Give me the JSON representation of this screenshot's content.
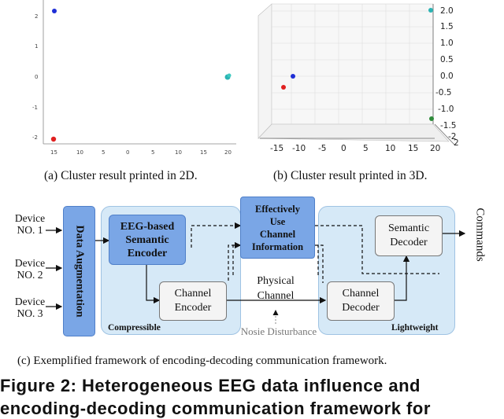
{
  "panel_a": {
    "caption": "(a) Cluster result printed in 2D.",
    "ytick_labels": [
      "2",
      "1",
      "0",
      "-1",
      "-2"
    ],
    "xtick_labels": [
      "15",
      "10",
      "5",
      "0",
      "5",
      "10",
      "15",
      "20"
    ]
  },
  "panel_b": {
    "caption": "(b) Cluster result printed in 3D.",
    "ztick_labels": [
      "2.0",
      "1.5",
      "1.0",
      "0.5",
      "0.0",
      "-0.5",
      "-1.0",
      "-1.5"
    ],
    "xtick_labels": [
      "-15",
      "-10",
      "-5",
      "0",
      "5",
      "10",
      "15",
      "20"
    ],
    "depth_labels": [
      "-2",
      "2"
    ]
  },
  "panel_c": {
    "caption": "(c) Exemplified framework of encoding-decoding communication framework.",
    "devices": [
      {
        "line1": "Device",
        "line2": "NO. 1"
      },
      {
        "line1": "Device",
        "line2": "NO. 2"
      },
      {
        "line1": "Device",
        "line2": "NO. 3"
      }
    ],
    "augmentation": "Data Augmentation",
    "semantic_encoder": [
      "EEG-based",
      "Semantic",
      "Encoder"
    ],
    "channel_encoder": [
      "Channel",
      "Encoder"
    ],
    "channel_info": [
      "Effectively",
      "Use",
      "Channel",
      "Information"
    ],
    "physical_channel": [
      "Physical",
      "Channel"
    ],
    "noise": "Nosie Disturbance",
    "semantic_decoder": [
      "Semantic",
      "Decoder"
    ],
    "channel_decoder": [
      "Channel",
      "Decoder"
    ],
    "compressible": "Compressible",
    "lightweight": "Lightweight",
    "commands": "Commands"
  },
  "figure_title": "Figure 2: Heterogeneous EEG data influence and",
  "figure_title_cont": "encoding-decoding communication framework for",
  "colors": {
    "red": "#e02020",
    "blue": "#1f2fd6",
    "teal": "#2bb3b3",
    "green": "#2e8b3a",
    "panel_fill": "#d6e9f7",
    "dark_box": "#7aa6e6",
    "light_box": "#f4f4f4"
  },
  "chart_data": [
    {
      "type": "scatter",
      "series": [
        {
          "color": "blue",
          "x": [
            -15
          ],
          "y": [
            2.2
          ]
        },
        {
          "color": "teal",
          "x": [
            20
          ],
          "y": [
            0
          ]
        },
        {
          "color": "red",
          "x": [
            -15
          ],
          "y": [
            -2.1
          ]
        }
      ]
    },
    {
      "type": "scatter",
      "series": [
        {
          "color": "teal",
          "x": [
            20
          ],
          "z": [
            2.1
          ]
        },
        {
          "color": "blue",
          "x": [
            -14
          ],
          "z": [
            0.0
          ]
        },
        {
          "color": "red",
          "x": [
            -16
          ],
          "z": [
            -0.3
          ]
        },
        {
          "color": "green",
          "x": [
            19
          ],
          "z": [
            -1.4
          ]
        }
      ]
    }
  ]
}
